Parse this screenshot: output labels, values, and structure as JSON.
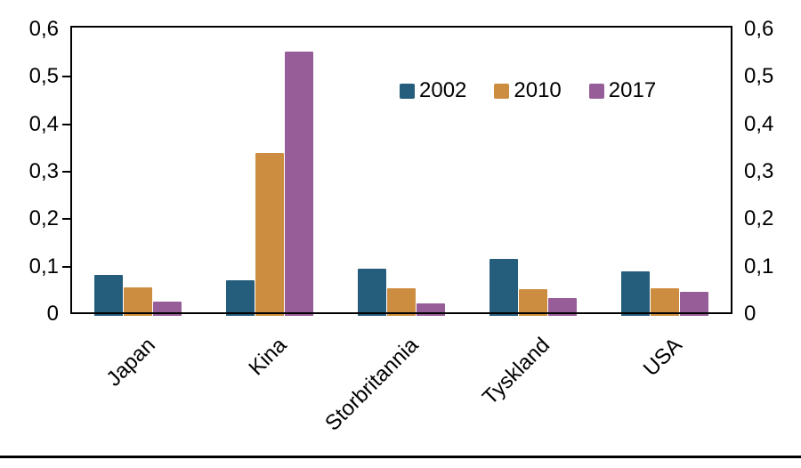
{
  "chart_data": {
    "type": "bar",
    "title": "",
    "categories": [
      "Japan",
      "Kina",
      "Storbritannia",
      "Tyskland",
      "USA"
    ],
    "series": [
      {
        "name": "2002",
        "color": "#255D7D",
        "values": [
          0.079,
          0.067,
          0.092,
          0.113,
          0.086
        ]
      },
      {
        "name": "2010",
        "color": "#CC8D40",
        "values": [
          0.052,
          0.335,
          0.051,
          0.049,
          0.051
        ]
      },
      {
        "name": "2017",
        "color": "#965D99",
        "values": [
          0.023,
          0.549,
          0.018,
          0.03,
          0.043
        ]
      }
    ],
    "ylim": [
      0,
      0.6
    ],
    "ytick_step": 0.1,
    "ytick_labels": [
      "0",
      "0,1",
      "0,2",
      "0,3",
      "0,4",
      "0,5",
      "0,6"
    ],
    "decimal_separator": ",",
    "grid": false,
    "dual_axis": true,
    "legend_position": "inside-top-center",
    "xlabel": "",
    "ylabel": ""
  },
  "colors": {
    "background": "#FFFFFF",
    "axis": "#000000",
    "text": "#000000",
    "series_2002": "#255D7D",
    "series_2010": "#CC8D40",
    "series_2017": "#965D99"
  }
}
